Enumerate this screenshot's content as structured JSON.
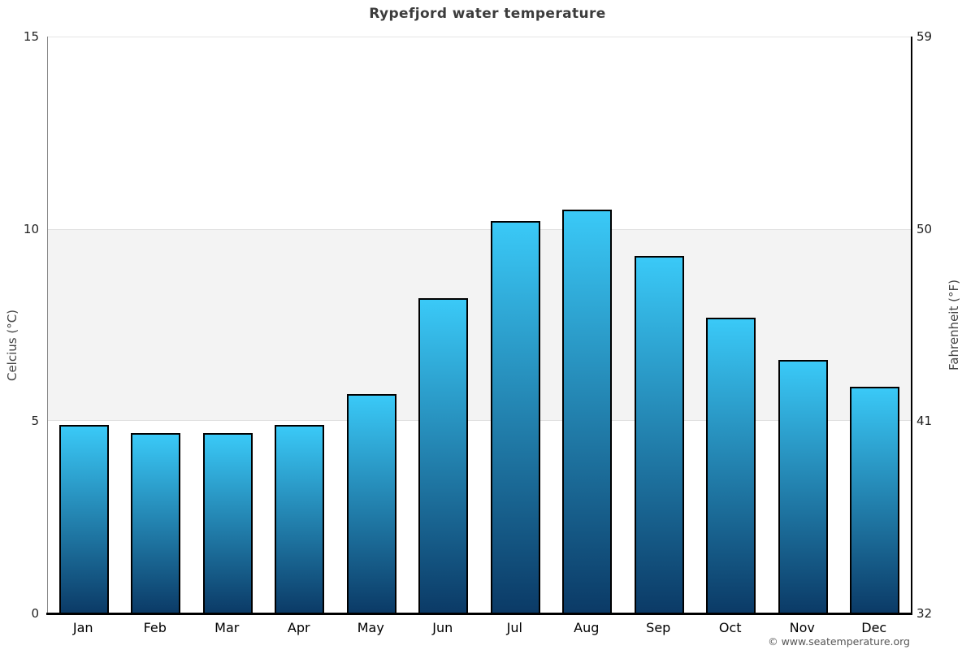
{
  "title": "Rypefjord water temperature",
  "copyright": "© www.seatemperature.org",
  "axes": {
    "left_title": "Celcius (°C)",
    "right_title": "Fahrenheit (°F)",
    "left_ticks": [
      15,
      10,
      5,
      0
    ],
    "right_ticks": [
      59,
      50,
      41,
      32
    ]
  },
  "chart_data": {
    "type": "bar",
    "title": "Rypefjord water temperature",
    "categories": [
      "Jan",
      "Feb",
      "Mar",
      "Apr",
      "May",
      "Jun",
      "Jul",
      "Aug",
      "Sep",
      "Oct",
      "Nov",
      "Dec"
    ],
    "values": [
      4.9,
      4.7,
      4.7,
      4.9,
      5.7,
      8.2,
      10.2,
      10.5,
      9.3,
      7.7,
      6.6,
      5.9
    ],
    "xlabel": "",
    "ylabel_left": "Celcius (°C)",
    "ylabel_right": "Fahrenheit (°F)",
    "ylim_celsius": [
      0,
      15
    ],
    "ylim_fahrenheit": [
      32,
      59
    ],
    "yticks_celsius": [
      0,
      5,
      10,
      15
    ],
    "yticks_fahrenheit": [
      32,
      41,
      50,
      59
    ],
    "shaded_band_celsius": [
      5,
      10
    ],
    "legend": false,
    "grid": "top line at 15°C plus shaded band 5–10°C"
  },
  "colors": {
    "bar_gradient_top": "#3ac9f7",
    "bar_gradient_bottom": "#0b3a66",
    "bar_border": "#000000",
    "band_fill": "#f3f3f3",
    "band_edge": "#e1e1e1",
    "left_axis_line": "#888888",
    "right_axis_line": "#000000",
    "baseline": "#000000",
    "title_text": "#3c3c3c",
    "tick_text": "#222222",
    "axis_title_text": "#444444",
    "copyright_text": "#555555",
    "background": "#ffffff"
  }
}
